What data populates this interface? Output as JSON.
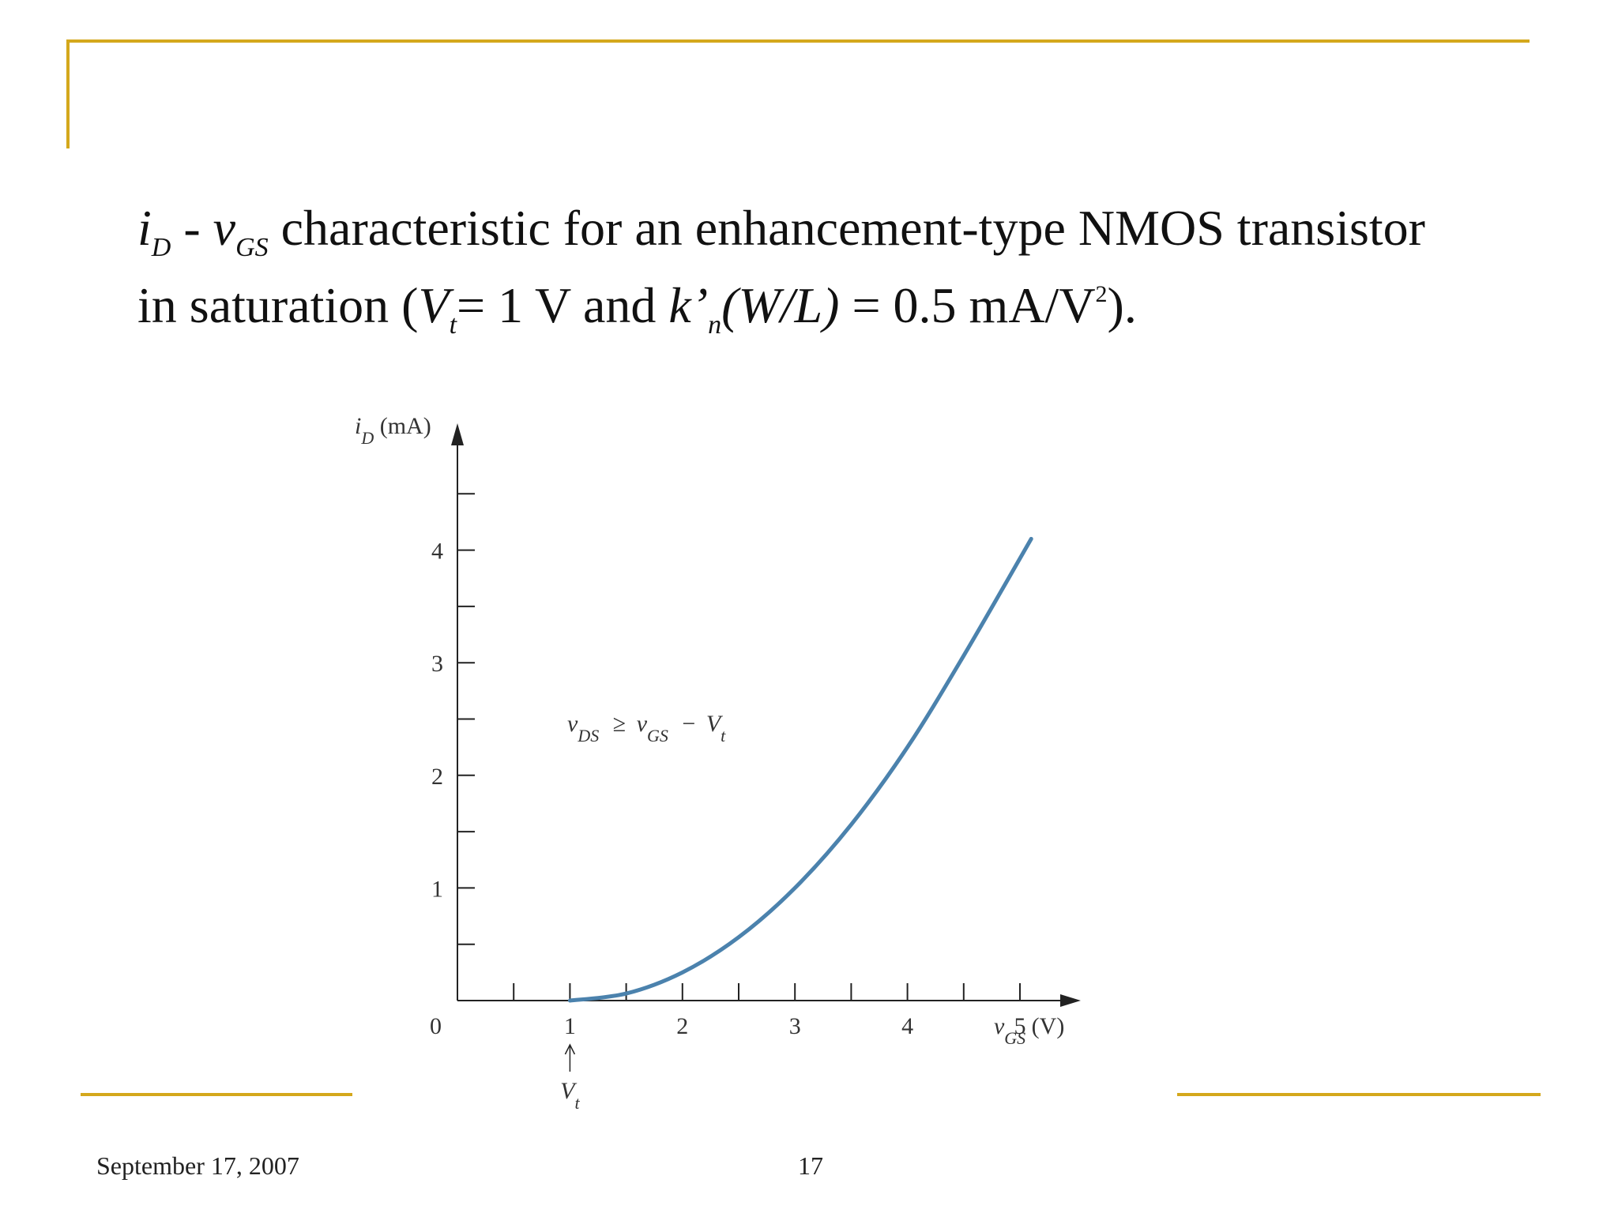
{
  "theme": {
    "accent": "#d4a81c",
    "curve": "#4b82ad",
    "axis": "#222222"
  },
  "slide": {
    "title_line1": {
      "i_sym": "i",
      "i_sub": "D",
      "sep": " - ",
      "v_sym": "v",
      "v_sub": "GS",
      "rest": " characteristic for an enhancement-type NMOS transistor"
    },
    "title_line2": {
      "pre": "in saturation (",
      "vt_sym": "V",
      "vt_sub": "t",
      "mid1": "= 1 V and ",
      "k_sym": "k’",
      "k_sub": "n",
      "wl": "(W/L)",
      "mid2": " = 0.5 mA/V",
      "sup": "2",
      "post": ")."
    },
    "footer_date": "September 17, 2007",
    "page_number": "17"
  },
  "chart_data": {
    "type": "line",
    "x_axis": {
      "label_symbol": "v",
      "label_sub": "GS",
      "label_unit": "(V)",
      "range": [
        0,
        5.4
      ],
      "ticks": [
        0.5,
        1,
        1.5,
        2,
        2.5,
        3,
        3.5,
        4,
        4.5,
        5
      ],
      "tick_labels": [
        "1",
        "2",
        "3",
        "4",
        "5"
      ],
      "tick_label_values": [
        1,
        2,
        3,
        4,
        5
      ]
    },
    "y_axis": {
      "label_symbol": "i",
      "label_sub": "D",
      "label_unit": "(mA)",
      "range": [
        0,
        5
      ],
      "ticks": [
        0.5,
        1,
        1.5,
        2,
        2.5,
        3,
        3.5,
        4,
        4.5
      ],
      "tick_labels": [
        "1",
        "2",
        "3",
        "4"
      ],
      "tick_label_values": [
        1,
        2,
        3,
        4
      ]
    },
    "origin_label": "0",
    "series": [
      {
        "x": [
          1,
          1.5,
          2,
          2.5,
          3,
          3.5,
          4,
          4.5,
          5.1
        ],
        "y": [
          0,
          0.0625,
          0.25,
          0.5625,
          1.0,
          1.5625,
          2.25,
          3.0625,
          4.1
        ]
      }
    ],
    "annotation": {
      "v1": "v",
      "v1_sub": "DS",
      "ge": "≥",
      "v2": "v",
      "v2_sub": "GS",
      "minus": "−",
      "v3": "V",
      "v3_sub": "t"
    },
    "vt_marker": {
      "x": 1,
      "symbol": "V",
      "sub": "t"
    }
  }
}
